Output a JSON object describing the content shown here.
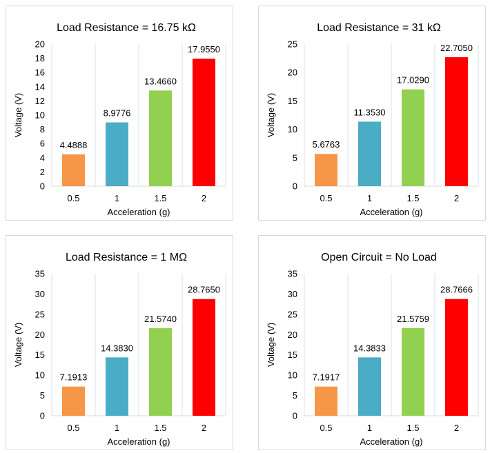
{
  "chart_data": [
    {
      "type": "bar",
      "title": "Load Resistance = 16.75 kΩ",
      "xlabel": "Acceleration (g)",
      "ylabel": "Voltage (V)",
      "ylim": [
        0,
        20
      ],
      "yticks": [
        "0",
        "2",
        "4",
        "6",
        "8",
        "10",
        "12",
        "14",
        "16",
        "18",
        "20"
      ],
      "categories": [
        "0.5",
        "1",
        "1.5",
        "2"
      ],
      "values": [
        4.4888,
        8.9776,
        13.466,
        17.955
      ],
      "value_labels": [
        "4.4888",
        "8.9776",
        "13.4660",
        "17.9550"
      ],
      "colors": [
        "#f79646",
        "#4bacc6",
        "#92d050",
        "#ff0000"
      ]
    },
    {
      "type": "bar",
      "title": "Load Resistance = 31 kΩ",
      "xlabel": "Acceleration (g)",
      "ylabel": "Voltage (V)",
      "ylim": [
        0,
        25
      ],
      "yticks": [
        "0",
        "5",
        "10",
        "15",
        "20",
        "25"
      ],
      "categories": [
        "0.5",
        "1",
        "1.5",
        "2"
      ],
      "values": [
        5.6763,
        11.353,
        17.029,
        22.705
      ],
      "value_labels": [
        "5.6763",
        "11.3530",
        "17.0290",
        "22.7050"
      ],
      "colors": [
        "#f79646",
        "#4bacc6",
        "#92d050",
        "#ff0000"
      ]
    },
    {
      "type": "bar",
      "title": "Load Resistance = 1 MΩ",
      "xlabel": "Acceleration (g)",
      "ylabel": "Voltage (V)",
      "ylim": [
        0,
        35
      ],
      "yticks": [
        "0",
        "5",
        "10",
        "15",
        "20",
        "25",
        "30",
        "35"
      ],
      "categories": [
        "0.5",
        "1",
        "1.5",
        "2"
      ],
      "values": [
        7.1913,
        14.383,
        21.574,
        28.765
      ],
      "value_labels": [
        "7.1913",
        "14.3830",
        "21.5740",
        "28.7650"
      ],
      "colors": [
        "#f79646",
        "#4bacc6",
        "#92d050",
        "#ff0000"
      ]
    },
    {
      "type": "bar",
      "title": "Open Circuit = No Load",
      "xlabel": "Acceleration (g)",
      "ylabel": "Voltage (V)",
      "ylim": [
        0,
        35
      ],
      "yticks": [
        "0",
        "5",
        "10",
        "15",
        "20",
        "25",
        "30",
        "35"
      ],
      "categories": [
        "0.5",
        "1",
        "1.5",
        "2"
      ],
      "values": [
        7.1917,
        14.3833,
        21.5759,
        28.7666
      ],
      "value_labels": [
        "7.1917",
        "14.3833",
        "21.5759",
        "28.7666"
      ],
      "colors": [
        "#f79646",
        "#4bacc6",
        "#92d050",
        "#ff0000"
      ]
    }
  ]
}
